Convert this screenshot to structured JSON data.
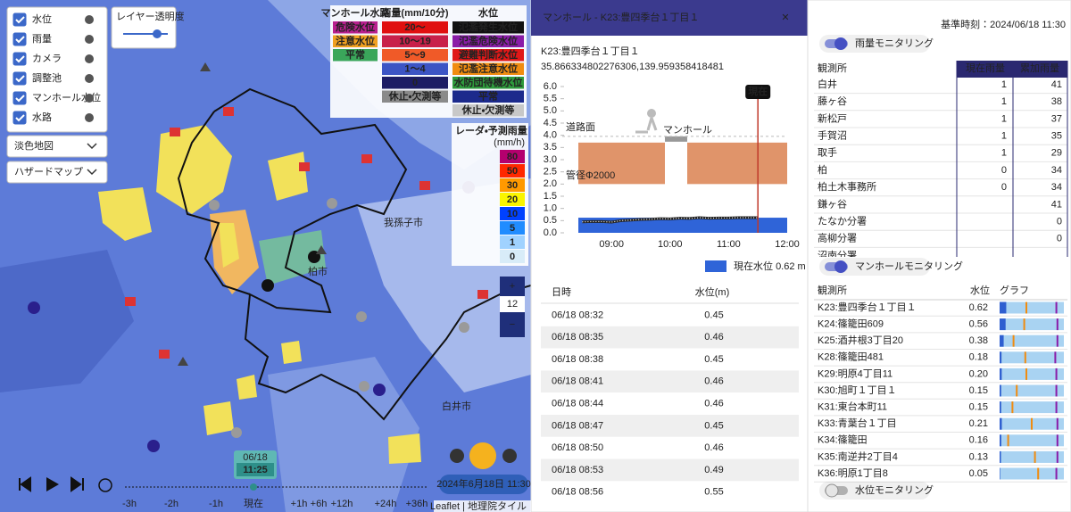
{
  "map": {
    "layers": [
      {
        "label": "水位",
        "checked": true
      },
      {
        "label": "雨量",
        "checked": true
      },
      {
        "label": "カメラ",
        "checked": true
      },
      {
        "label": "調整池",
        "checked": true
      },
      {
        "label": "マンホール水位",
        "checked": true
      },
      {
        "label": "水路",
        "checked": true
      }
    ],
    "opacity_label": "レイヤー透明度",
    "basemap": "淡色地図",
    "overlay": "ハザードマップ",
    "legend": {
      "headers": [
        "マンホール水路",
        "雨量(mm/10分)",
        "水位"
      ],
      "manhole": [
        {
          "label": "危険水位",
          "color": "#b8208e"
        },
        {
          "label": "注意水位",
          "color": "#f0a020"
        },
        {
          "label": "平常",
          "color": "#3aa65a"
        }
      ],
      "rain": [
        {
          "label": "20〜",
          "color": "#e01010"
        },
        {
          "label": "10〜19",
          "color": "#c8204a"
        },
        {
          "label": "5〜9",
          "color": "#f05a28"
        },
        {
          "label": "1〜4",
          "color": "#3c54c4"
        },
        {
          "label": "0",
          "color": "#1c1c64"
        },
        {
          "label": "休止・欠測等",
          "color": "#8a8a8a"
        }
      ],
      "level": [
        {
          "label": "氾濫発生水位",
          "color": "#111111"
        },
        {
          "label": "氾濫危険水位",
          "color": "#8a1ca8"
        },
        {
          "label": "避難判断水位",
          "color": "#e01818"
        },
        {
          "label": "氾濫注意水位",
          "color": "#f08c10"
        },
        {
          "label": "水防団待機水位",
          "color": "#2e9a3c"
        },
        {
          "label": "平常",
          "color": "#1c2a8c"
        },
        {
          "label": "休止・欠測等",
          "color": "#c8c8c8"
        }
      ]
    },
    "radar": {
      "title": "レーダ・予測雨量",
      "unit": "(mm/h)",
      "levels": [
        {
          "value": 80,
          "color": "#b4006e"
        },
        {
          "value": 50,
          "color": "#ff2800"
        },
        {
          "value": 30,
          "color": "#ff9900"
        },
        {
          "value": 20,
          "color": "#faf500"
        },
        {
          "value": 10,
          "color": "#0041ff"
        },
        {
          "value": 5,
          "color": "#218cff"
        },
        {
          "value": 1,
          "color": "#a0d2ff"
        },
        {
          "value": 0,
          "color": "#d8ecf8"
        }
      ]
    },
    "zoom": 12,
    "zoom_in": "+",
    "zoom_out": "−",
    "places": [
      "我孫子市",
      "柏市",
      "白井市"
    ],
    "time": {
      "date": "06/18",
      "clock": "11:25"
    },
    "timeline": [
      "-3h",
      "-2h",
      "-1h",
      "現在",
      "+1h",
      "+6h",
      "+12h",
      "+24h",
      "+36h"
    ],
    "datetime": "2024年6月18日 11:30",
    "attribution": "Leaflet | 地理院タイル"
  },
  "detail": {
    "header": "マンホール - K23:豊四季台１丁目１",
    "close": "✕",
    "name": "K23:豊四季台１丁目１",
    "coords": "35.866334802276306,139.959358418481",
    "table": {
      "headers": [
        "日時",
        "水位(m)"
      ],
      "rows": [
        [
          "06/18 08:32",
          0.45
        ],
        [
          "06/18 08:35",
          0.46
        ],
        [
          "06/18 08:38",
          0.45
        ],
        [
          "06/18 08:41",
          0.46
        ],
        [
          "06/18 08:44",
          0.46
        ],
        [
          "06/18 08:47",
          0.45
        ],
        [
          "06/18 08:50",
          0.46
        ],
        [
          "06/18 08:53",
          0.49
        ],
        [
          "06/18 08:56",
          0.55
        ]
      ]
    }
  },
  "chart_data": {
    "type": "line",
    "x": [
      "08:30",
      "08:40",
      "08:50",
      "09:00",
      "09:10",
      "09:20",
      "09:30",
      "09:40",
      "09:50",
      "10:00",
      "10:10",
      "10:20",
      "10:30",
      "10:40",
      "10:50",
      "11:00",
      "11:10",
      "11:20",
      "11:30"
    ],
    "series": [
      {
        "color": "#222222",
        "values": [
          0.45,
          0.46,
          0.46,
          0.44,
          0.5,
          0.52,
          0.55,
          0.56,
          0.58,
          0.57,
          0.6,
          0.59,
          0.62,
          0.6,
          0.61,
          0.61,
          0.62,
          0.62,
          0.62
        ]
      }
    ],
    "xlim": [
      "08:26",
      "12:00"
    ],
    "xticks": [
      "09:00",
      "10:00",
      "11:00",
      "12:00"
    ],
    "ylim": [
      0,
      6
    ],
    "yticks": [
      {
        "value": 0,
        "label": "0.0"
      },
      0.5,
      {
        "value": 1,
        "label": "1.0"
      },
      1.5,
      {
        "value": 2,
        "label": "2.0"
      },
      2.5,
      {
        "value": 3,
        "label": "3.0"
      },
      3.5,
      {
        "value": 4,
        "label": "4.0"
      },
      4.5,
      {
        "value": 5,
        "label": "5.0"
      },
      5.5,
      {
        "value": 6,
        "label": "6.0"
      }
    ],
    "current_level": {
      "name": "現在水位",
      "value": 0.62,
      "unit": "m",
      "color": "#2f64d8"
    },
    "now": {
      "x": "11:30",
      "label": "現在",
      "color": "#c0392b"
    },
    "pipe": {
      "top": 3.7,
      "bottom": 2.0,
      "color": "#e0946a"
    },
    "road_label": "道路面",
    "pipe_label": "管径Φ2000",
    "manhole_label": "マンホール"
  },
  "right": {
    "base_time": "基準時刻：2024/06/18 11:30",
    "rain": {
      "toggle": "雨量モニタリング",
      "on": true,
      "headers": [
        "観測所",
        "現在雨量",
        "累加雨量"
      ],
      "rows": [
        [
          "白井",
          1,
          41
        ],
        [
          "藤ヶ谷",
          1,
          38
        ],
        [
          "新松戸",
          1,
          37
        ],
        [
          "手賀沼",
          1,
          35
        ],
        [
          "取手",
          1,
          29
        ],
        [
          "柏",
          0,
          34
        ],
        [
          "柏土木事務所",
          0,
          34
        ],
        [
          "鎌ヶ谷",
          null,
          41
        ],
        [
          "たなか分署",
          null,
          0
        ],
        [
          "高柳分署",
          null,
          0
        ],
        [
          "沼南分署",
          null,
          null
        ]
      ]
    },
    "manhole": {
      "toggle": "マンホールモニタリング",
      "on": true,
      "headers": [
        "観測所",
        "水位",
        "グラフ"
      ],
      "rows": [
        {
          "name": "K23:豊四季台１丁目１",
          "level": 0.62,
          "caution": 2.5,
          "danger": 5.3
        },
        {
          "name": "K24:篠籠田609",
          "level": 0.56,
          "caution": 2.3,
          "danger": 5.4
        },
        {
          "name": "K25:酒井根3丁目20",
          "level": 0.38,
          "caution": 1.3,
          "danger": 5.4
        },
        {
          "name": "K28:篠籠田481",
          "level": 0.18,
          "caution": 2.4,
          "danger": 5.2
        },
        {
          "name": "K29:明原4丁目11",
          "level": 0.2,
          "level_label": "0.20",
          "caution": 2.5,
          "danger": 5.3
        },
        {
          "name": "K30:旭町１丁目１",
          "level": 0.15,
          "caution": 1.6,
          "danger": 5.3
        },
        {
          "name": "K31:東台本町11",
          "level": 0.15,
          "caution": 1.2,
          "danger": 5.3
        },
        {
          "name": "K33:青葉台１丁目",
          "level": 0.21,
          "caution": 3.0,
          "danger": 5.4
        },
        {
          "name": "K34:篠籠田",
          "level": 0.16,
          "caution": 0.8,
          "danger": 5.4
        },
        {
          "name": "K35:南逆井2丁目4",
          "level": 0.13,
          "caution": 3.3,
          "danger": 5.4
        },
        {
          "name": "K36:明原1丁目8",
          "level": 0.05,
          "caution": 3.6,
          "danger": 5.3
        }
      ]
    },
    "level": {
      "toggle": "水位モニタリング",
      "on": false
    }
  }
}
